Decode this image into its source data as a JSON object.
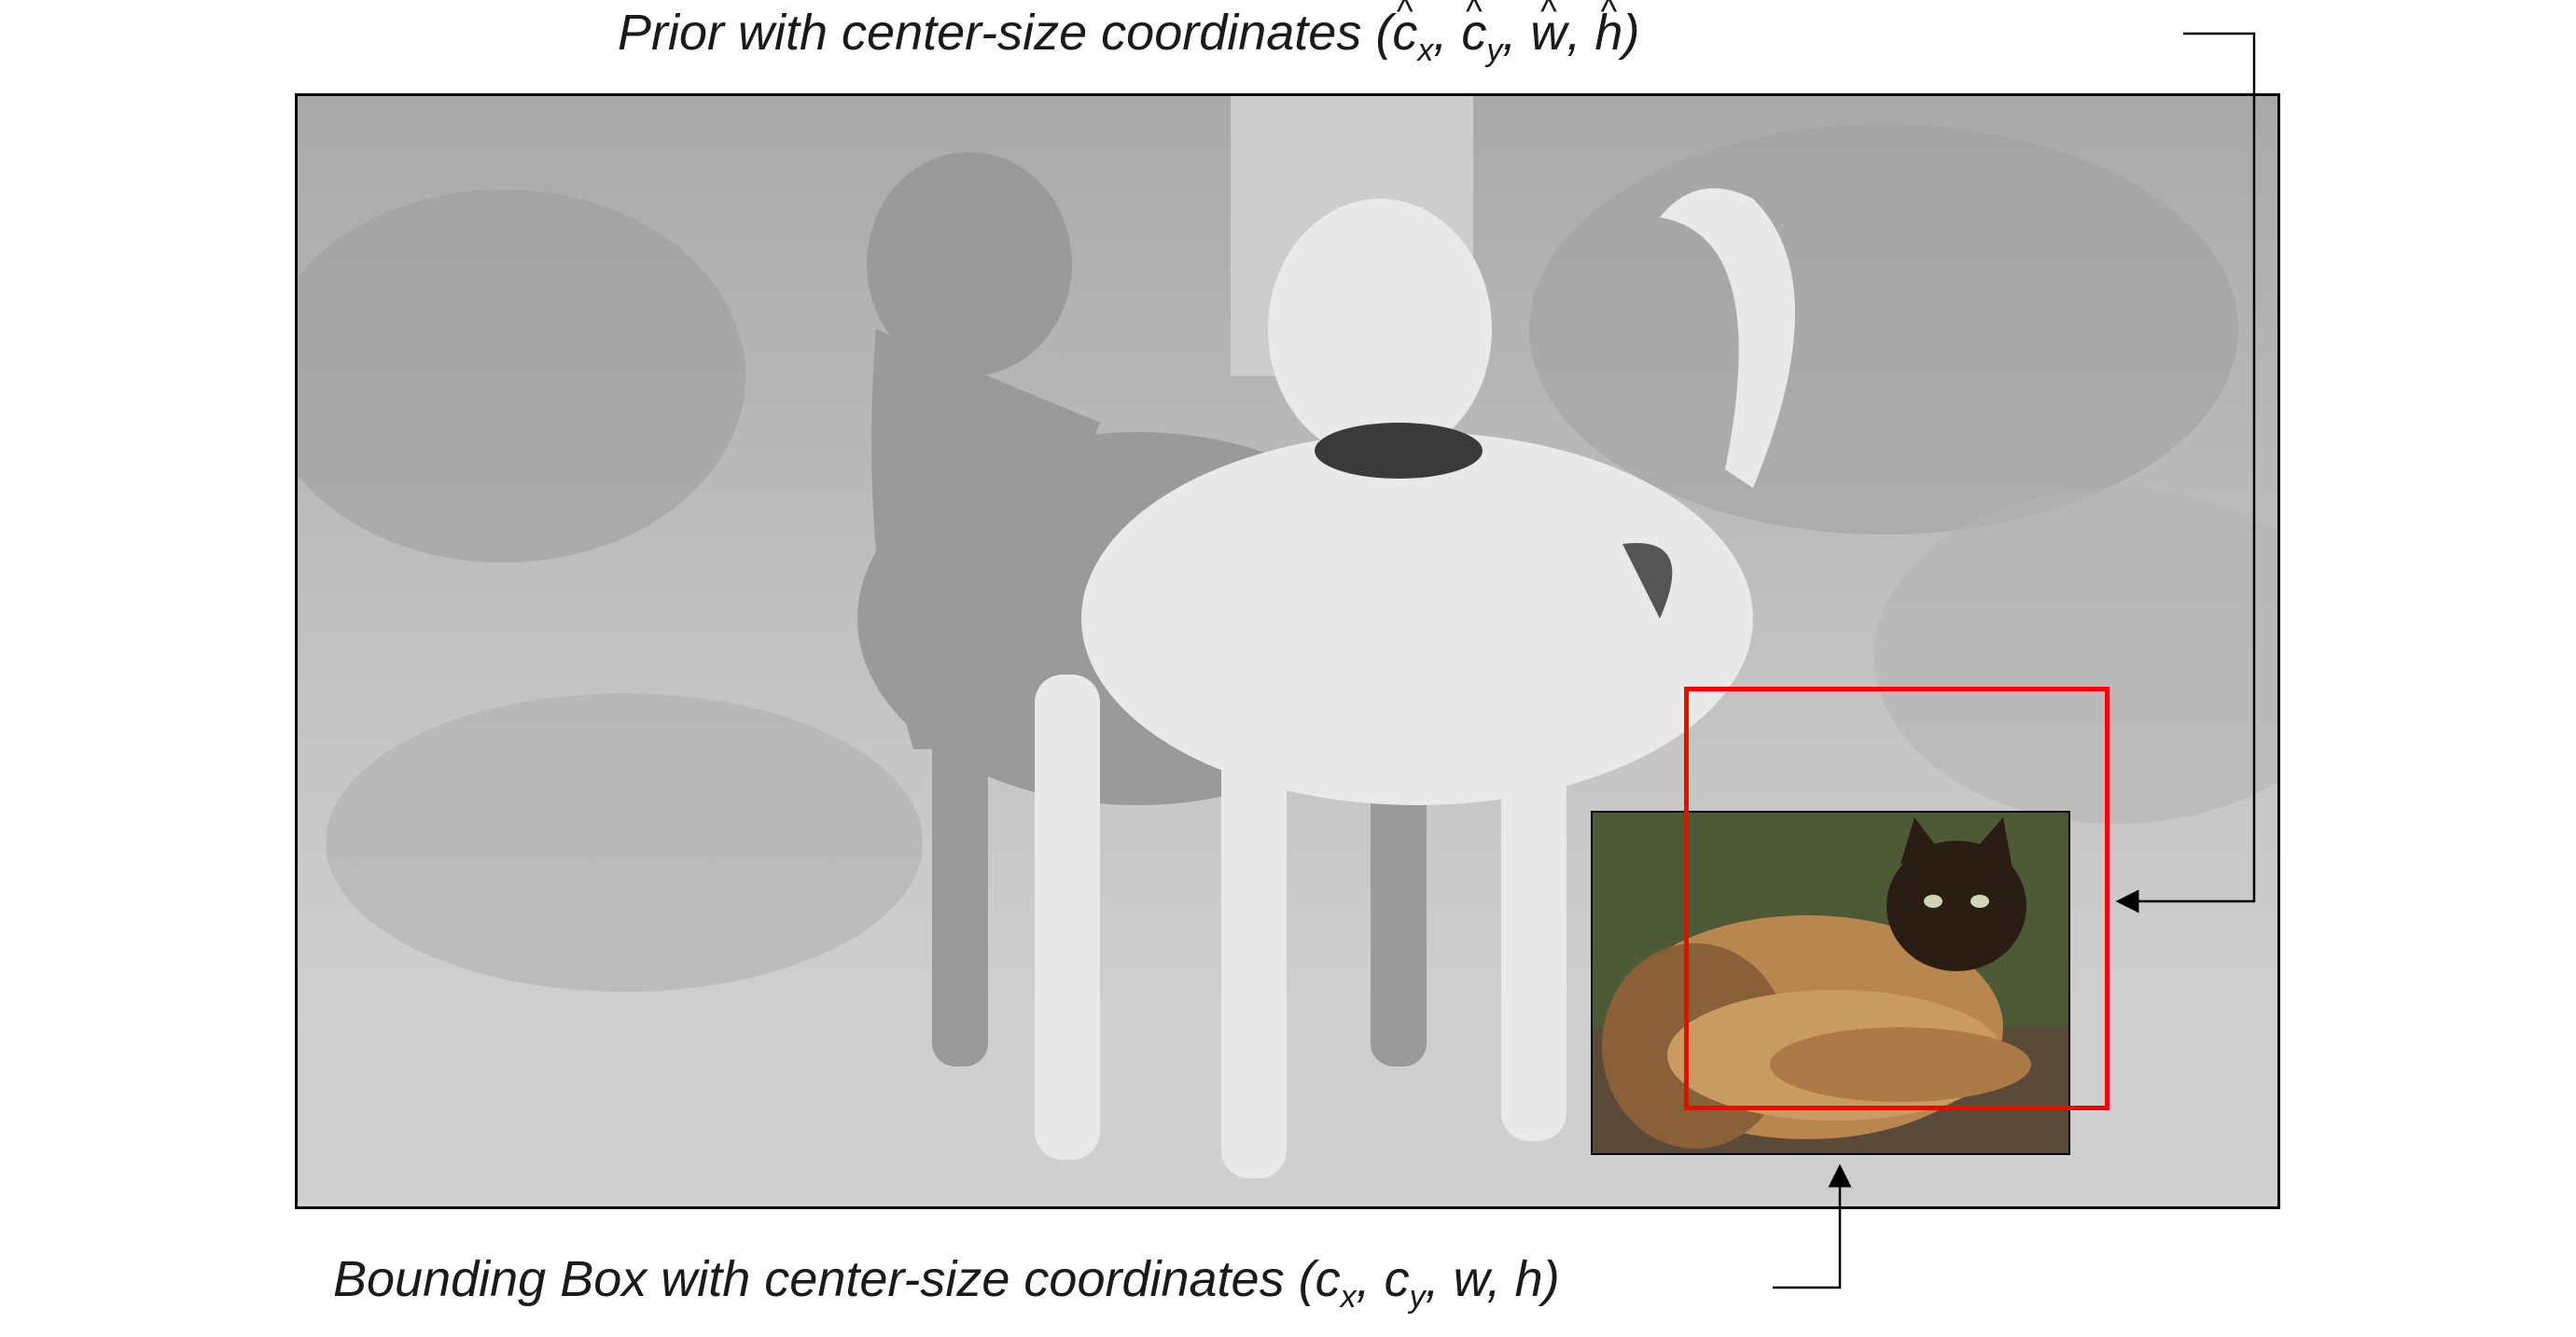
{
  "prior_label": {
    "prefix": "Prior with center-size coordinates (",
    "c": "c",
    "x_sub": "x",
    "y_sub": "y",
    "w": "w",
    "h": "h",
    "sep": ", ",
    "suffix": ")"
  },
  "bbox_label": {
    "prefix": "Bounding Box with center-size coordinates (",
    "c": "c",
    "x_sub": "x",
    "y_sub": "y",
    "w": "w",
    "h": "h",
    "sep": ", ",
    "suffix": ")"
  },
  "colors": {
    "prior_box": "#ff0000",
    "photo_gray": "#c9c9c9",
    "cat_fur": "#b8864e",
    "cat_face": "#2a1d14"
  },
  "figures": {
    "main_photo": "dogs-grayscale-photo",
    "inset_photo": "cat-color-photo"
  }
}
